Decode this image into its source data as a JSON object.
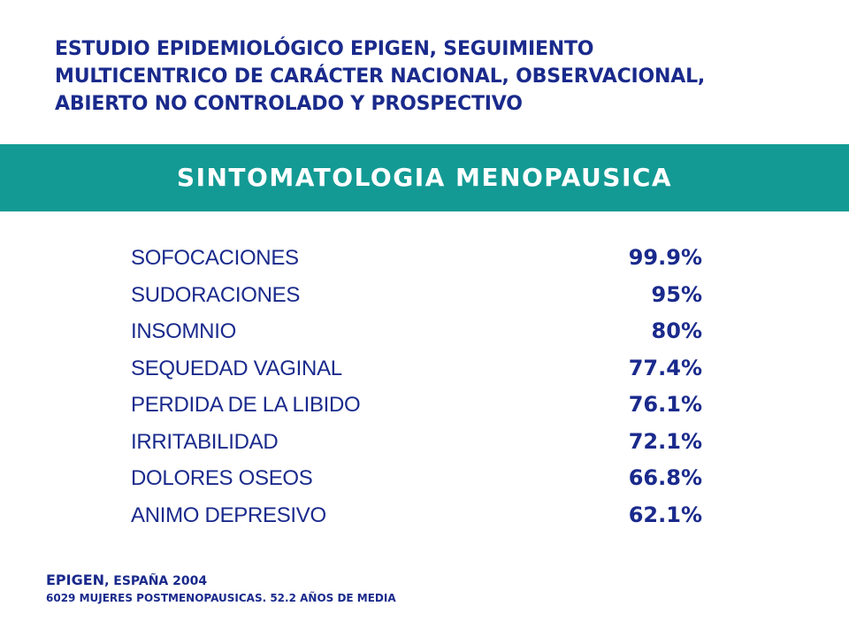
{
  "heading": {
    "line1": "ESTUDIO EPIDEMIOLÓGICO EPIGEN, SEGUIMIENTO",
    "line2": "MULTICENTRICO DE CARÁCTER NACIONAL, OBSERVACIONAL,",
    "line3": "ABIERTO NO CONTROLADO Y PROSPECTIVO"
  },
  "banner": {
    "title": "SINTOMATOLOGIA MENOPAUSICA",
    "color": "#139a94"
  },
  "symptoms": [
    {
      "name": "SOFOCACIONES",
      "value": "99.9%"
    },
    {
      "name": "SUDORACIONES",
      "value": "95%"
    },
    {
      "name": "INSOMNIO",
      "value": "80%"
    },
    {
      "name": "SEQUEDAD VAGINAL",
      "value": "77.4%"
    },
    {
      "name": "PERDIDA DE LA LIBIDO",
      "value": "76.1%"
    },
    {
      "name": "IRRITABILIDAD",
      "value": "72.1%"
    },
    {
      "name": "DOLORES OSEOS",
      "value": "66.8%"
    },
    {
      "name": "ANIMO DEPRESIVO",
      "value": "62.1%"
    }
  ],
  "footnote": {
    "source": "EPIGEN",
    "source_suffix": ", ESPAÑA 2004",
    "detail": "6029 MUJERES POSTMENOPAUSICAS. 52.2 AÑOS DE MEDIA"
  },
  "colors": {
    "text": "#1a2a8c",
    "banner": "#139a94",
    "banner_text": "#ffffff"
  }
}
